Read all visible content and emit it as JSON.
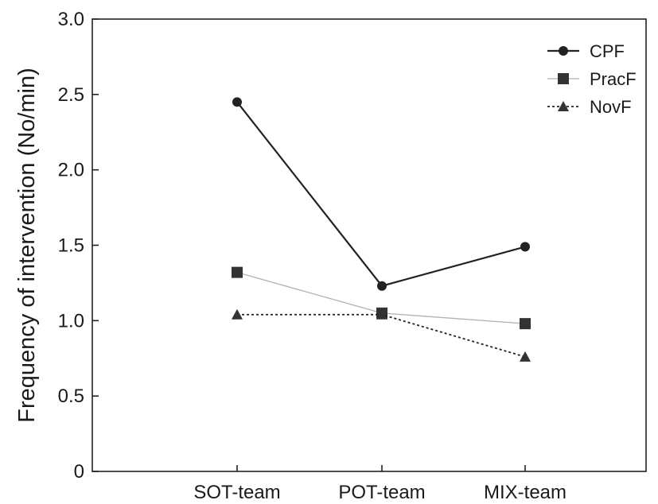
{
  "chart_data": {
    "type": "line",
    "title": "",
    "xlabel": "",
    "ylabel": "Frequency of intervention (No/min)",
    "categories": [
      "SOT-team",
      "POT-team",
      "MIX-team"
    ],
    "ylim": [
      0,
      3.0
    ],
    "yticks": [
      "0",
      "0.5",
      "1.0",
      "1.5",
      "2.0",
      "2.5",
      "3.0"
    ],
    "ytick_values": [
      0,
      0.5,
      1.0,
      1.5,
      2.0,
      2.5,
      3.0
    ],
    "grid": false,
    "legend_position": "top-right",
    "series": [
      {
        "name": "CPF",
        "values": [
          2.45,
          1.23,
          1.49
        ],
        "marker": "diamond",
        "line": "solid",
        "color": "#222222"
      },
      {
        "name": "PracF",
        "values": [
          1.32,
          1.05,
          0.98
        ],
        "marker": "square",
        "line": "thin",
        "color": "#b0b0b0"
      },
      {
        "name": "NovF",
        "values": [
          1.04,
          1.04,
          0.76
        ],
        "marker": "triangle",
        "line": "dotted",
        "color": "#222222"
      }
    ]
  }
}
